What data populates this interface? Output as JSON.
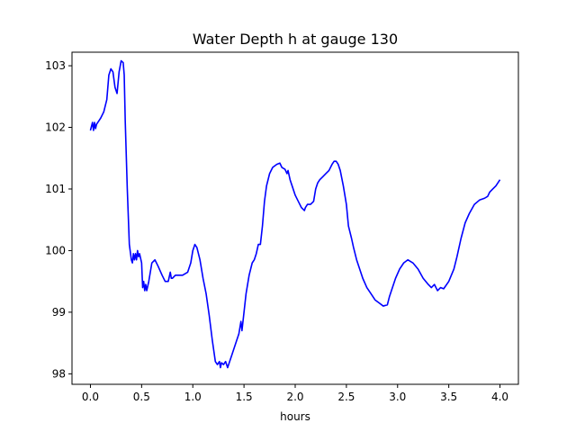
{
  "chart_data": {
    "type": "line",
    "title": "Water Depth h at gauge 130",
    "xlabel": "hours",
    "ylabel": "",
    "xlim": [
      -0.18,
      4.18
    ],
    "ylim": [
      97.83,
      103.22
    ],
    "x_ticks": [
      0.0,
      0.5,
      1.0,
      1.5,
      2.0,
      2.5,
      3.0,
      3.5,
      4.0
    ],
    "x_tick_labels": [
      "0.0",
      "0.5",
      "1.0",
      "1.5",
      "2.0",
      "2.5",
      "3.0",
      "3.5",
      "4.0"
    ],
    "y_ticks": [
      98,
      99,
      100,
      101,
      102,
      103
    ],
    "y_tick_labels": [
      "98",
      "99",
      "100",
      "101",
      "102",
      "103"
    ],
    "grid": false,
    "legend": "none",
    "line_color": "#0000ff",
    "series": [
      {
        "x": [
          0.0,
          0.02,
          0.03,
          0.04,
          0.05,
          0.06,
          0.08,
          0.1,
          0.13,
          0.16,
          0.18,
          0.2,
          0.22,
          0.24,
          0.26,
          0.28,
          0.3,
          0.32,
          0.33,
          0.34,
          0.36,
          0.38,
          0.4,
          0.41,
          0.42,
          0.43,
          0.44,
          0.45,
          0.46,
          0.47,
          0.48,
          0.5,
          0.51,
          0.52,
          0.53,
          0.54,
          0.55,
          0.57,
          0.6,
          0.63,
          0.66,
          0.7,
          0.73,
          0.76,
          0.78,
          0.79,
          0.8,
          0.83,
          0.86,
          0.9,
          0.95,
          0.98,
          1.0,
          1.02,
          1.04,
          1.07,
          1.1,
          1.13,
          1.16,
          1.19,
          1.22,
          1.24,
          1.26,
          1.27,
          1.28,
          1.3,
          1.32,
          1.34,
          1.36,
          1.38,
          1.4,
          1.42,
          1.45,
          1.47,
          1.48,
          1.5,
          1.52,
          1.55,
          1.58,
          1.6,
          1.62,
          1.64,
          1.66,
          1.68,
          1.7,
          1.72,
          1.75,
          1.78,
          1.82,
          1.85,
          1.87,
          1.9,
          1.92,
          1.93,
          1.95,
          1.97,
          2.0,
          2.03,
          2.06,
          2.09,
          2.1,
          2.12,
          2.15,
          2.18,
          2.2,
          2.22,
          2.24,
          2.27,
          2.3,
          2.33,
          2.36,
          2.38,
          2.4,
          2.42,
          2.44,
          2.47,
          2.5,
          2.52,
          2.55,
          2.57,
          2.6,
          2.63,
          2.66,
          2.7,
          2.74,
          2.78,
          2.82,
          2.86,
          2.9,
          2.92,
          2.95,
          2.98,
          3.02,
          3.06,
          3.1,
          3.15,
          3.2,
          3.25,
          3.3,
          3.33,
          3.36,
          3.39,
          3.42,
          3.45,
          3.5,
          3.55,
          3.58,
          3.62,
          3.66,
          3.7,
          3.75,
          3.8,
          3.85,
          3.88,
          3.9,
          3.93,
          3.96,
          4.0
        ],
        "y": [
          101.95,
          102.08,
          101.95,
          102.08,
          101.98,
          102.05,
          102.1,
          102.15,
          102.25,
          102.45,
          102.85,
          102.95,
          102.9,
          102.65,
          102.55,
          102.9,
          103.08,
          103.05,
          102.85,
          102.1,
          101.0,
          100.1,
          99.85,
          99.8,
          99.95,
          99.85,
          99.95,
          99.85,
          100.0,
          99.9,
          99.95,
          99.8,
          99.4,
          99.5,
          99.35,
          99.45,
          99.35,
          99.5,
          99.8,
          99.85,
          99.75,
          99.6,
          99.5,
          99.5,
          99.65,
          99.55,
          99.55,
          99.6,
          99.6,
          99.6,
          99.65,
          99.8,
          100.0,
          100.1,
          100.05,
          99.85,
          99.55,
          99.3,
          98.95,
          98.55,
          98.2,
          98.15,
          98.2,
          98.1,
          98.18,
          98.15,
          98.2,
          98.1,
          98.2,
          98.3,
          98.4,
          98.5,
          98.65,
          98.85,
          98.7,
          99.0,
          99.3,
          99.6,
          99.8,
          99.85,
          99.95,
          100.1,
          100.1,
          100.4,
          100.8,
          101.05,
          101.25,
          101.35,
          101.4,
          101.42,
          101.35,
          101.32,
          101.25,
          101.3,
          101.15,
          101.05,
          100.9,
          100.8,
          100.7,
          100.65,
          100.7,
          100.75,
          100.75,
          100.8,
          101.0,
          101.1,
          101.15,
          101.2,
          101.25,
          101.3,
          101.4,
          101.45,
          101.45,
          101.4,
          101.3,
          101.05,
          100.75,
          100.4,
          100.2,
          100.05,
          99.85,
          99.7,
          99.55,
          99.4,
          99.3,
          99.2,
          99.15,
          99.1,
          99.12,
          99.25,
          99.4,
          99.55,
          99.7,
          99.8,
          99.85,
          99.8,
          99.7,
          99.55,
          99.45,
          99.4,
          99.45,
          99.35,
          99.4,
          99.38,
          99.5,
          99.7,
          99.9,
          100.2,
          100.45,
          100.6,
          100.75,
          100.82,
          100.85,
          100.88,
          100.95,
          101.0,
          101.05,
          101.15
        ]
      }
    ]
  }
}
